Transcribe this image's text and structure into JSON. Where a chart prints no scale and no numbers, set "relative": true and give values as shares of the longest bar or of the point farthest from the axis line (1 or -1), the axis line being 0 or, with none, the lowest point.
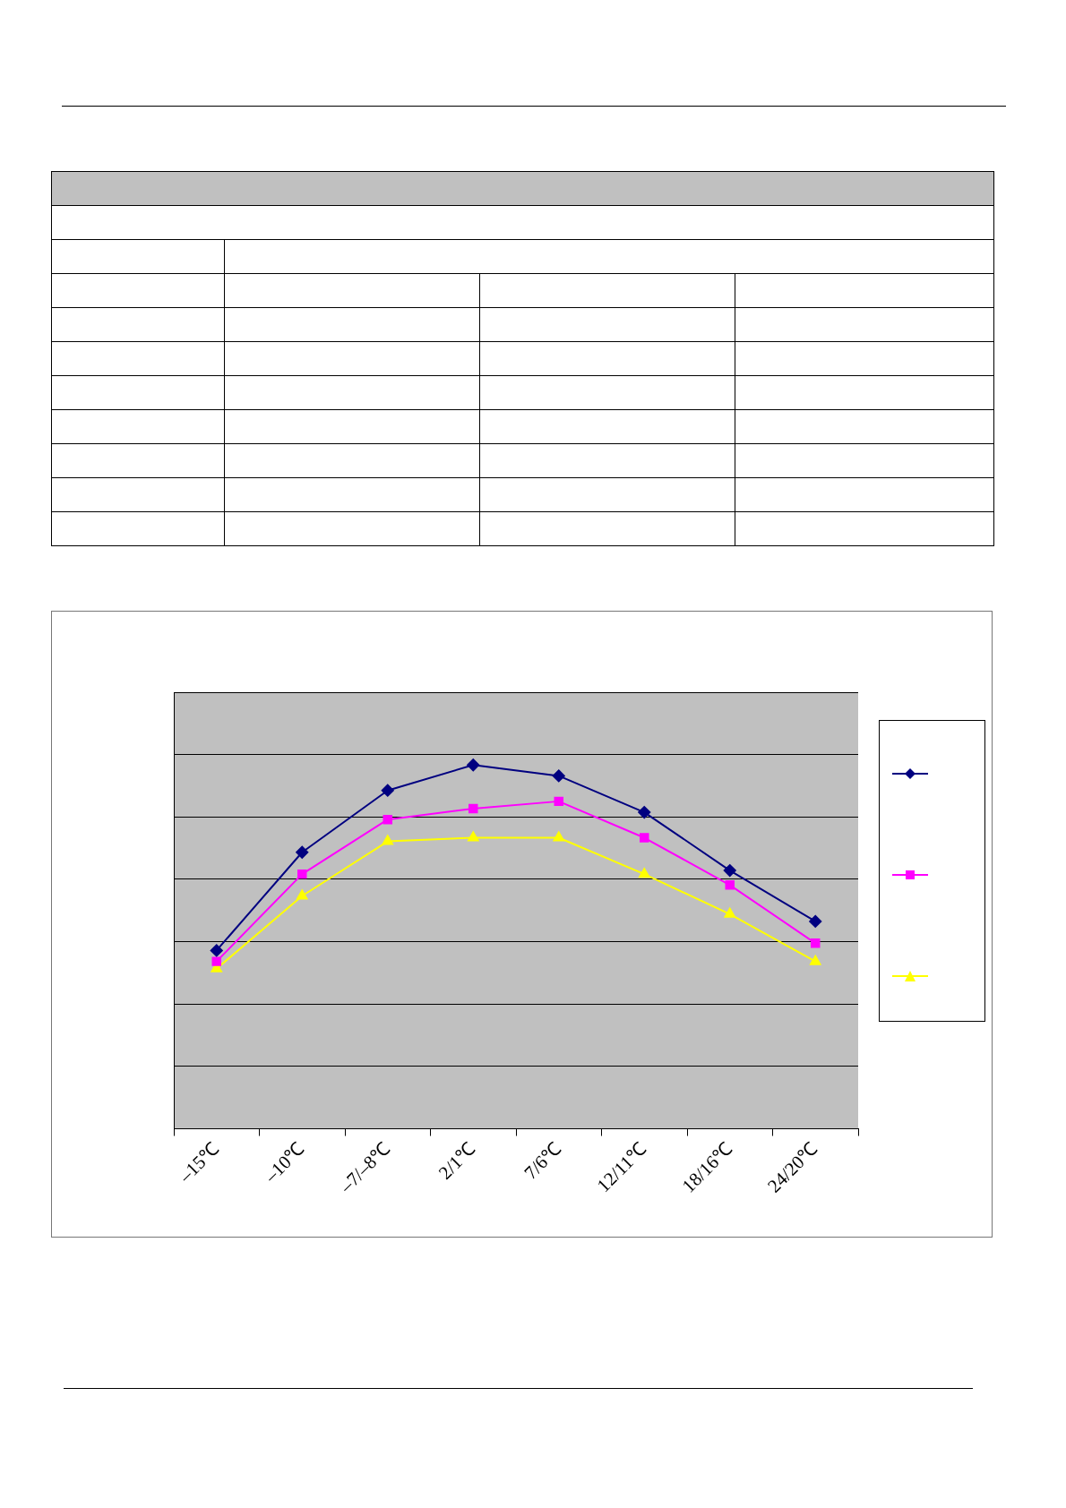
{
  "chart_data": {
    "type": "line",
    "relative": true,
    "grid": "y",
    "categories": [
      "–15℃",
      "–10℃",
      "–7/–8℃",
      "2/1℃",
      "7/6℃",
      "12/11℃",
      "18/16℃",
      "24/20℃"
    ],
    "series": [
      {
        "color": "#000080",
        "marker": "diamond",
        "values": [
          0.49,
          0.76,
          0.93,
          1,
          0.97,
          0.87,
          0.71,
          0.57
        ]
      },
      {
        "color": "#ff00ff",
        "marker": "square",
        "values": [
          0.46,
          0.7,
          0.85,
          0.88,
          0.9,
          0.8,
          0.67,
          0.51
        ]
      },
      {
        "color": "#ffff00",
        "marker": "triangle",
        "values": [
          0.44,
          0.64,
          0.79,
          0.8,
          0.8,
          0.7,
          0.59,
          0.46
        ]
      }
    ]
  }
}
